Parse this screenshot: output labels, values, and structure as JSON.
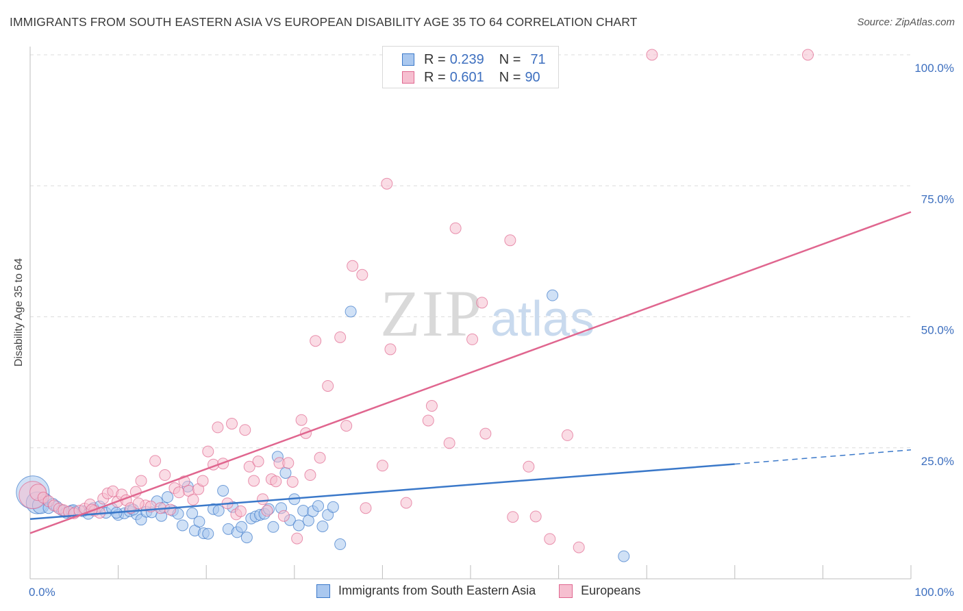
{
  "title": "IMMIGRANTS FROM SOUTH EASTERN ASIA VS EUROPEAN DISABILITY AGE 35 TO 64 CORRELATION CHART",
  "source": "Source: ZipAtlas.com",
  "watermark": {
    "zip": "ZIP",
    "atlas": "atlas"
  },
  "colors": {
    "blue": "#3a78c9",
    "blue_fill": "#aac8ef",
    "pink": "#e0668f",
    "pink_fill": "#f6bfd0",
    "grid": "#dcdcdc",
    "tick_text": "#3d6fbf"
  },
  "legend": {
    "rows": [
      {
        "r_label": "R =",
        "r_value": "0.239",
        "n_label": "N =",
        "n_value": "71",
        "color": "blue"
      },
      {
        "r_label": "R =",
        "r_value": "0.601",
        "n_label": "N =",
        "n_value": "90",
        "color": "pink"
      }
    ]
  },
  "bottom_legend": [
    {
      "label": "Immigrants from South Eastern Asia",
      "color": "blue"
    },
    {
      "label": "Europeans",
      "color": "pink"
    }
  ],
  "chart_data": {
    "type": "scatter",
    "title": "IMMIGRANTS FROM SOUTH EASTERN ASIA VS EUROPEAN DISABILITY AGE 35 TO 64 CORRELATION CHART",
    "xlabel": "",
    "ylabel": "Disability Age 35 to 64",
    "x_tick_labels": [
      "0.0%",
      "100.0%"
    ],
    "y_tick_labels": [
      "25.0%",
      "50.0%",
      "75.0%",
      "100.0%"
    ],
    "xlim": [
      0,
      100
    ],
    "ylim": [
      0,
      100
    ],
    "grid": true,
    "legend_position": "top-center",
    "series": [
      {
        "name": "Immigrants from South Eastern Asia",
        "color": "blue",
        "trend": {
          "x_solid_end": 80,
          "x_end": 100,
          "y_start": 11.4,
          "y_at_solid_end": 21.9,
          "y_end": 24.6
        },
        "points": [
          [
            0.3,
            16.5,
            3
          ],
          [
            0.8,
            14.5,
            2
          ],
          [
            1.2,
            14.0,
            1.5
          ],
          [
            1.8,
            15.2,
            1
          ],
          [
            2.1,
            13.5,
            1
          ],
          [
            2.6,
            14.3,
            1
          ],
          [
            3.0,
            13.8,
            1
          ],
          [
            3.6,
            13.1,
            1
          ],
          [
            4.1,
            12.6,
            1
          ],
          [
            4.7,
            13.0,
            1
          ],
          [
            5.2,
            12.8,
            1
          ],
          [
            6.0,
            12.9,
            1
          ],
          [
            6.6,
            12.4,
            1
          ],
          [
            7.2,
            13.5,
            1
          ],
          [
            7.9,
            13.8,
            1
          ],
          [
            8.6,
            12.6,
            1
          ],
          [
            9.3,
            13.4,
            1
          ],
          [
            10.0,
            12.2,
            1
          ],
          [
            10.7,
            12.5,
            1
          ],
          [
            11.3,
            12.9,
            1
          ],
          [
            12.1,
            12.3,
            1
          ],
          [
            12.6,
            11.3,
            1
          ],
          [
            13.2,
            12.8,
            1
          ],
          [
            13.8,
            12.7,
            1
          ],
          [
            14.4,
            14.8,
            1
          ],
          [
            14.9,
            12.0,
            1
          ],
          [
            15.6,
            15.6,
            1
          ],
          [
            16.2,
            13.0,
            1
          ],
          [
            16.8,
            12.4,
            1
          ],
          [
            17.3,
            10.2,
            1
          ],
          [
            17.9,
            17.6,
            1
          ],
          [
            18.4,
            12.5,
            1
          ],
          [
            18.7,
            9.2,
            1
          ],
          [
            19.2,
            10.9,
            1
          ],
          [
            19.7,
            8.7,
            1
          ],
          [
            20.2,
            8.6,
            1
          ],
          [
            20.8,
            13.3,
            1
          ],
          [
            21.4,
            13.0,
            1
          ],
          [
            21.9,
            16.8,
            1
          ],
          [
            22.5,
            9.5,
            1
          ],
          [
            23.0,
            13.7,
            1
          ],
          [
            23.5,
            8.9,
            1
          ],
          [
            24.0,
            9.9,
            1
          ],
          [
            24.6,
            7.9,
            1
          ],
          [
            25.1,
            11.5,
            1
          ],
          [
            25.6,
            11.9,
            1
          ],
          [
            26.1,
            12.2,
            1
          ],
          [
            26.6,
            12.4,
            1
          ],
          [
            27.1,
            13.3,
            1
          ],
          [
            27.6,
            9.9,
            1
          ],
          [
            28.1,
            23.3,
            1
          ],
          [
            28.5,
            13.5,
            1
          ],
          [
            29.0,
            20.2,
            1
          ],
          [
            29.5,
            11.2,
            1
          ],
          [
            30.0,
            15.2,
            1
          ],
          [
            30.5,
            10.2,
            1
          ],
          [
            31.0,
            13.0,
            1
          ],
          [
            31.6,
            11.1,
            1
          ],
          [
            32.1,
            12.9,
            1
          ],
          [
            32.7,
            13.9,
            1
          ],
          [
            33.2,
            10.0,
            1
          ],
          [
            33.8,
            12.2,
            1
          ],
          [
            34.4,
            13.7,
            1
          ],
          [
            35.2,
            6.6,
            1
          ],
          [
            36.4,
            51.0,
            1
          ],
          [
            59.3,
            54.1,
            1
          ],
          [
            67.4,
            4.3,
            1
          ],
          [
            4.9,
            13.1,
            1
          ],
          [
            9.8,
            12.6,
            1
          ],
          [
            11.7,
            13.2,
            1
          ],
          [
            15.2,
            13.6,
            1
          ]
        ]
      },
      {
        "name": "Europeans",
        "color": "pink",
        "trend": {
          "x_start": 0,
          "x_end": 100,
          "y_start": 8.7,
          "y_end": 70.0
        },
        "points": [
          [
            0.3,
            16.0,
            2.5
          ],
          [
            0.9,
            16.5,
            1.5
          ],
          [
            1.5,
            15.5,
            1
          ],
          [
            2.1,
            14.8,
            1
          ],
          [
            2.7,
            14.0,
            1
          ],
          [
            3.3,
            13.4,
            1
          ],
          [
            3.8,
            13.1,
            1
          ],
          [
            4.4,
            12.8,
            1
          ],
          [
            5.0,
            12.5,
            1
          ],
          [
            5.6,
            13.0,
            1
          ],
          [
            6.2,
            13.4,
            1
          ],
          [
            6.8,
            14.2,
            1
          ],
          [
            7.3,
            13.0,
            1
          ],
          [
            7.9,
            12.6,
            1
          ],
          [
            8.3,
            15.3,
            1
          ],
          [
            8.8,
            16.3,
            1
          ],
          [
            9.4,
            16.7,
            1
          ],
          [
            9.9,
            14.7,
            1
          ],
          [
            10.4,
            16.1,
            1
          ],
          [
            10.9,
            15.0,
            1
          ],
          [
            11.4,
            13.5,
            1
          ],
          [
            12.0,
            16.6,
            1
          ],
          [
            12.6,
            18.7,
            1
          ],
          [
            13.1,
            14.0,
            1
          ],
          [
            13.7,
            13.8,
            1
          ],
          [
            14.2,
            22.5,
            1
          ],
          [
            14.8,
            13.5,
            1
          ],
          [
            15.3,
            19.8,
            1
          ],
          [
            15.9,
            13.2,
            1
          ],
          [
            16.4,
            17.3,
            1
          ],
          [
            16.9,
            16.5,
            1
          ],
          [
            17.5,
            18.6,
            1
          ],
          [
            18.0,
            16.8,
            1
          ],
          [
            18.5,
            15.1,
            1
          ],
          [
            19.1,
            17.1,
            1
          ],
          [
            19.6,
            18.7,
            1
          ],
          [
            20.2,
            24.3,
            1
          ],
          [
            20.8,
            21.8,
            1
          ],
          [
            21.3,
            28.9,
            1
          ],
          [
            21.9,
            22.0,
            1
          ],
          [
            22.4,
            14.4,
            1
          ],
          [
            22.9,
            29.6,
            1
          ],
          [
            23.4,
            12.3,
            1
          ],
          [
            23.9,
            12.9,
            1
          ],
          [
            24.4,
            28.4,
            1
          ],
          [
            24.9,
            21.4,
            1
          ],
          [
            25.4,
            18.7,
            1
          ],
          [
            25.9,
            22.4,
            1
          ],
          [
            26.4,
            15.2,
            1
          ],
          [
            26.9,
            13.0,
            1
          ],
          [
            27.4,
            19.0,
            1
          ],
          [
            27.9,
            18.6,
            1
          ],
          [
            28.3,
            22.1,
            1
          ],
          [
            28.8,
            12.0,
            1
          ],
          [
            29.3,
            22.1,
            1
          ],
          [
            29.8,
            18.5,
            1
          ],
          [
            30.3,
            7.7,
            1
          ],
          [
            30.8,
            30.3,
            1
          ],
          [
            31.3,
            27.8,
            1
          ],
          [
            31.8,
            19.8,
            1
          ],
          [
            32.4,
            45.4,
            1
          ],
          [
            32.9,
            23.1,
            1
          ],
          [
            33.8,
            36.8,
            1
          ],
          [
            35.2,
            46.1,
            1
          ],
          [
            35.9,
            29.2,
            1
          ],
          [
            36.6,
            59.7,
            1
          ],
          [
            37.7,
            58.0,
            1
          ],
          [
            38.1,
            13.5,
            1
          ],
          [
            40.0,
            21.6,
            1
          ],
          [
            40.5,
            75.4,
            1
          ],
          [
            40.9,
            43.8,
            1
          ],
          [
            42.7,
            14.5,
            1
          ],
          [
            45.2,
            30.2,
            1
          ],
          [
            45.6,
            33.0,
            1
          ],
          [
            47.6,
            25.9,
            1
          ],
          [
            48.3,
            66.9,
            1
          ],
          [
            50.2,
            45.7,
            1
          ],
          [
            51.3,
            52.7,
            1
          ],
          [
            51.7,
            27.7,
            1
          ],
          [
            54.5,
            64.6,
            1
          ],
          [
            54.8,
            11.8,
            1
          ],
          [
            56.6,
            21.4,
            1
          ],
          [
            57.4,
            11.9,
            1
          ],
          [
            59.0,
            7.6,
            1
          ],
          [
            61.0,
            27.4,
            1
          ],
          [
            62.3,
            6.0,
            1
          ],
          [
            70.6,
            100.0,
            1
          ],
          [
            88.3,
            100.0,
            1
          ],
          [
            7.0,
            13.2,
            1
          ],
          [
            12.3,
            14.4,
            1
          ]
        ]
      }
    ]
  }
}
